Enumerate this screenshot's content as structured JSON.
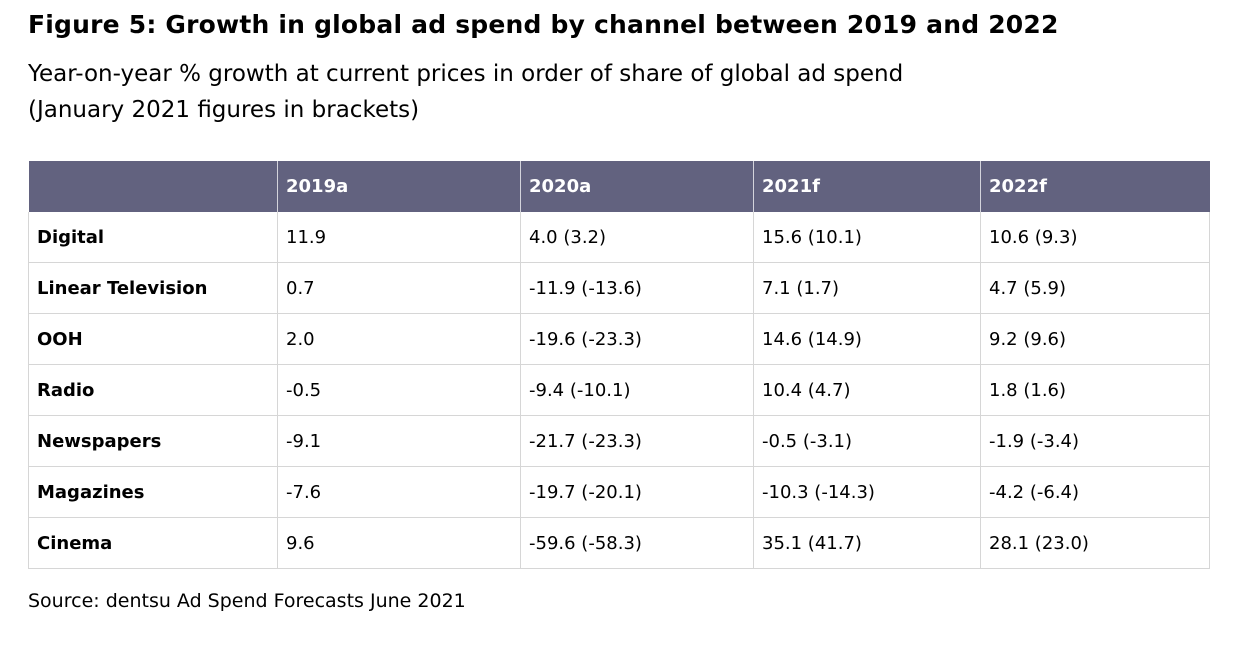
{
  "chart_data": {
    "type": "table",
    "title": "Figure 5: Growth in global ad spend by channel between 2019 and 2022",
    "subtitle_line1": "Year-on-year % growth at current prices in order of share of global ad spend",
    "subtitle_line2": "(January 2021 figures in brackets)",
    "columns": [
      "",
      "2019a",
      "2020a",
      "2021f",
      "2022f"
    ],
    "rows": [
      {
        "channel": "Digital",
        "cells": [
          "11.9",
          "4.0 (3.2)",
          "15.6 (10.1)",
          "10.6 (9.3)"
        ]
      },
      {
        "channel": "Linear Television",
        "cells": [
          "0.7",
          "-11.9 (-13.6)",
          "7.1 (1.7)",
          "4.7 (5.9)"
        ]
      },
      {
        "channel": "OOH",
        "cells": [
          "2.0",
          "-19.6 (-23.3)",
          "14.6 (14.9)",
          "9.2 (9.6)"
        ]
      },
      {
        "channel": "Radio",
        "cells": [
          "-0.5",
          "-9.4 (-10.1)",
          "10.4 (4.7)",
          "1.8 (1.6)"
        ]
      },
      {
        "channel": "Newspapers",
        "cells": [
          "-9.1",
          "-21.7 (-23.3)",
          "-0.5 (-3.1)",
          "-1.9 (-3.4)"
        ]
      },
      {
        "channel": "Magazines",
        "cells": [
          "-7.6",
          "-19.7 (-20.1)",
          "-10.3 (-14.3)",
          "-4.2 (-6.4)"
        ]
      },
      {
        "channel": "Cinema",
        "cells": [
          "9.6",
          "-59.6 (-58.3)",
          "35.1 (41.7)",
          "28.1 (23.0)"
        ]
      }
    ],
    "source": "Source: dentsu Ad Spend Forecasts June 2021",
    "header_color": "#62627f",
    "header_text_color": "#ffffff",
    "grid_color": "#d6d6d6"
  }
}
